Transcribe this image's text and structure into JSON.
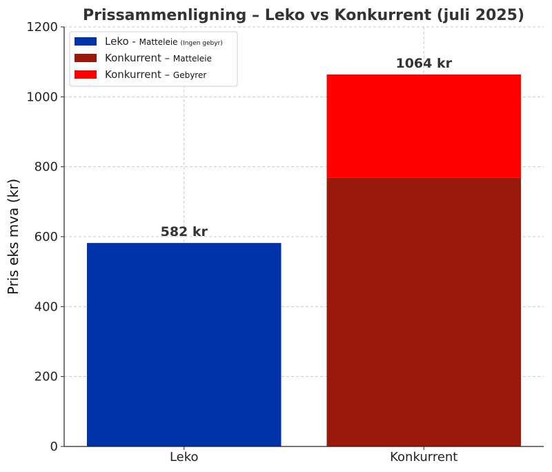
{
  "chart_data": {
    "type": "bar",
    "stacked": true,
    "title": "Prissammenligning – Leko vs Konkurrent (juli 2025)",
    "xlabel": "",
    "ylabel": "Pris eks mva (kr)",
    "ylim": [
      0,
      1200
    ],
    "yticks": [
      0,
      200,
      400,
      600,
      800,
      1000,
      1200
    ],
    "grid": true,
    "legend_position": "top-left",
    "categories": [
      "Leko",
      "Konkurrent"
    ],
    "series": [
      {
        "legend_main": "Leko",
        "legend_sub": "Matteleie",
        "legend_note": "(Ingen gebyr)",
        "color": "#0033aa",
        "values": [
          582,
          0
        ]
      },
      {
        "legend_main": "Konkurrent",
        "legend_sub": "Matteleie",
        "legend_note": "",
        "color": "#991a0a",
        "values": [
          0,
          768
        ]
      },
      {
        "legend_main": "Konkurrent",
        "legend_sub": "Gebyrer",
        "legend_note": "",
        "color": "#ff0000",
        "values": [
          0,
          296
        ]
      }
    ],
    "total_labels": [
      "582 kr",
      "1064 kr"
    ]
  }
}
